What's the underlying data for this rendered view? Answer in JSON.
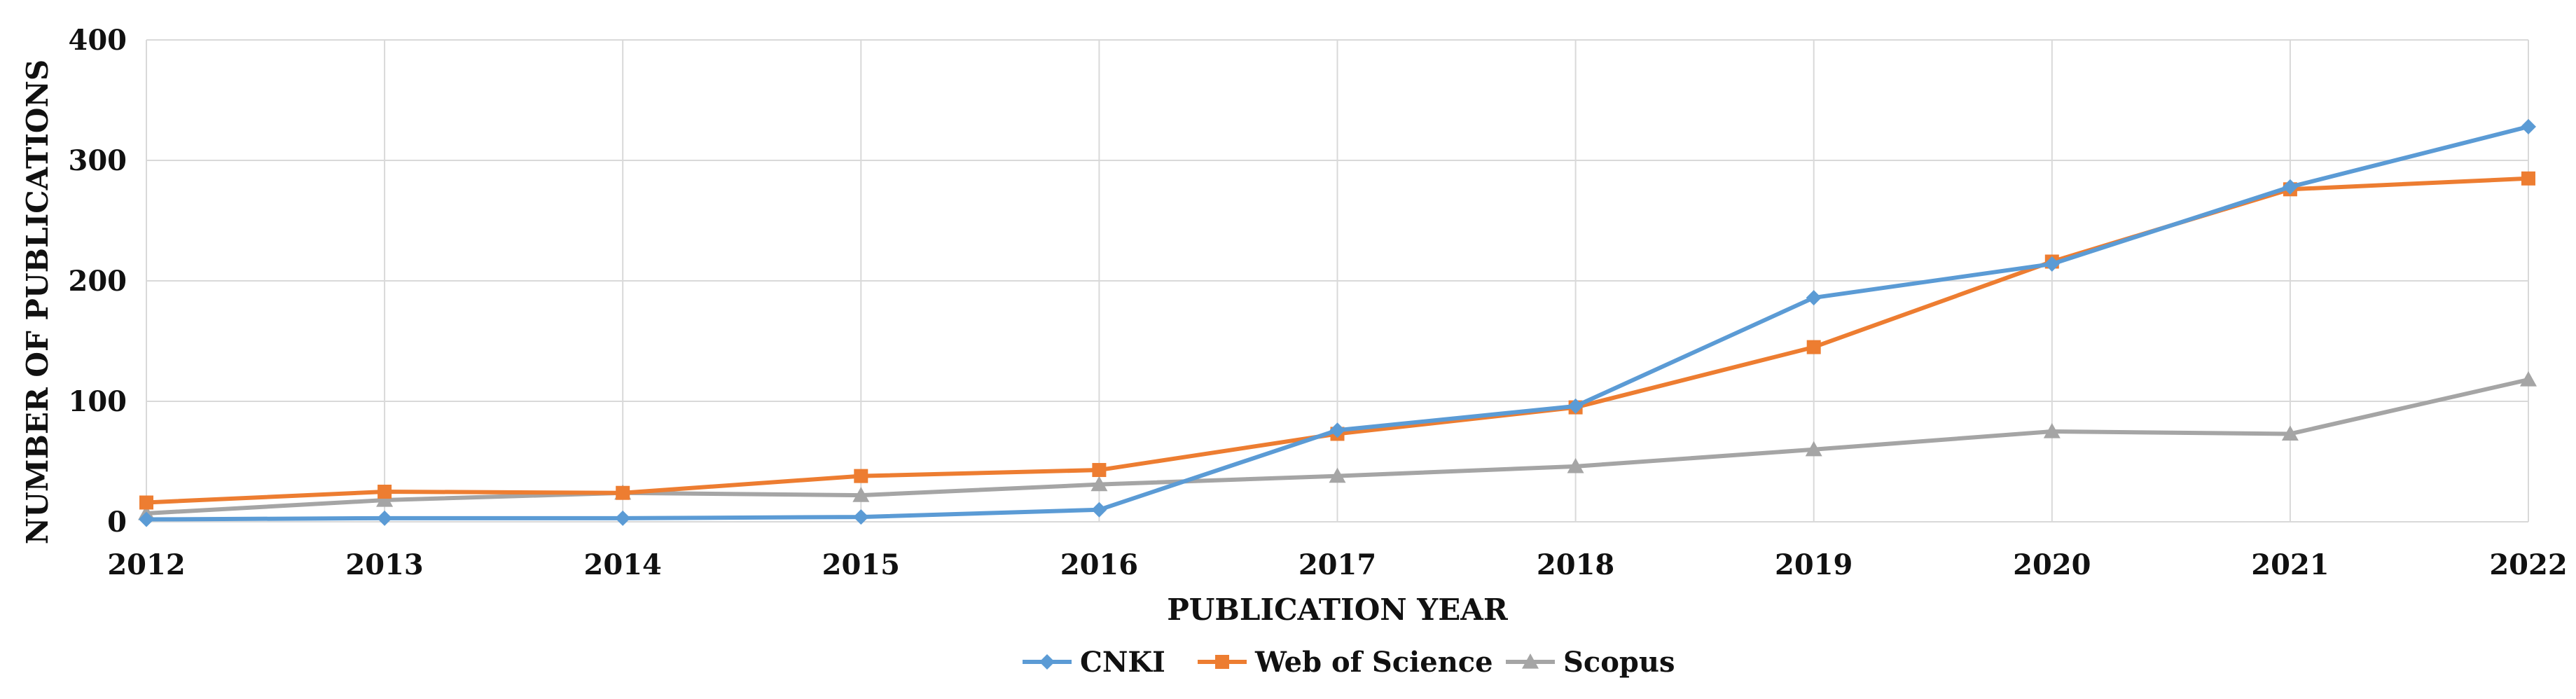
{
  "chart_data": {
    "type": "line",
    "title": "",
    "xlabel": "PUBLICATION YEAR",
    "ylabel": "NUMBER OF PUBLICATIONS",
    "x": [
      2012,
      2013,
      2014,
      2015,
      2016,
      2017,
      2018,
      2019,
      2020,
      2021,
      2022
    ],
    "ylim": [
      0,
      400
    ],
    "yticks": [
      0,
      100,
      200,
      300,
      400
    ],
    "grid": true,
    "legend_position": "bottom-center",
    "series": [
      {
        "name": "CNKI",
        "color": "#5b9bd5",
        "marker": "diamond",
        "values": [
          2,
          3,
          3,
          4,
          10,
          76,
          96,
          186,
          214,
          278,
          328
        ]
      },
      {
        "name": "Web of Science",
        "color": "#ed7d31",
        "marker": "square",
        "values": [
          16,
          25,
          24,
          38,
          43,
          73,
          95,
          145,
          216,
          276,
          285
        ]
      },
      {
        "name": "Scopus",
        "color": "#a5a5a5",
        "marker": "triangle",
        "values": [
          7,
          18,
          24,
          22,
          31,
          38,
          46,
          60,
          75,
          73,
          118
        ]
      }
    ]
  }
}
